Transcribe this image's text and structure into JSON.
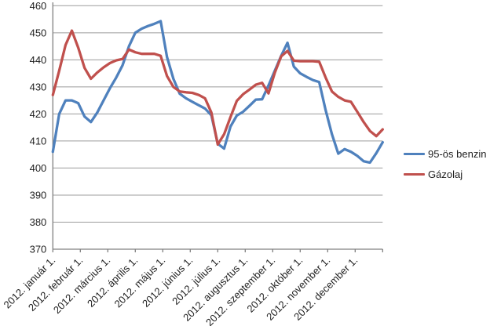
{
  "chart_data": {
    "type": "line",
    "title": "",
    "xlabel": "",
    "ylabel": "",
    "grid": true,
    "legend_position": "right",
    "x_unit": "weekly points, 2012. január 1. – 2012. december 30.",
    "y_axis": {
      "min": 370,
      "max": 460,
      "step": 10,
      "tick_labels": [
        "370",
        "380",
        "390",
        "400",
        "410",
        "420",
        "430",
        "440",
        "450",
        "460"
      ]
    },
    "x_axis": {
      "tick_labels": [
        "2012. január 1.",
        "2012. február 1.",
        "2012. március 1.",
        "2012. április 1.",
        "2012. május 1.",
        "2012. június 1.",
        "2012. július 1.",
        "2012. augusztus 1.",
        "2012. szeptember 1.",
        "2012. október 1.",
        "2012. november 1.",
        "2012. december 1."
      ]
    },
    "series": [
      {
        "name": "95-ös benzin",
        "color": "#4F81BD",
        "values": [
          406,
          420,
          425,
          425,
          424,
          419,
          417,
          420.5,
          425,
          429.5,
          433.5,
          438,
          445,
          450,
          451.5,
          452.5,
          453.3,
          454.3,
          441,
          433,
          427.5,
          425.8,
          424.5,
          423.2,
          422,
          419.5,
          409,
          407.2,
          415.3,
          419.4,
          420.8,
          423,
          425.3,
          425.4,
          430.5,
          436,
          441.5,
          446.3,
          437.5,
          435,
          433.7,
          432.5,
          431.8,
          421.5,
          412.5,
          405.3,
          407,
          406,
          404.5,
          402.5,
          402,
          405.5,
          409.5
        ]
      },
      {
        "name": "Gázolaj",
        "color": "#C0504D",
        "values": [
          427,
          436,
          445.5,
          450.8,
          444.5,
          437,
          433,
          435.3,
          437.2,
          438.8,
          439.8,
          440.3,
          443.8,
          442.8,
          442.2,
          442.2,
          442.2,
          441.5,
          434,
          430,
          428.3,
          428,
          427.8,
          427,
          425.8,
          420.5,
          408.7,
          412.5,
          418.8,
          424.8,
          427.3,
          429,
          430.8,
          431.5,
          427.6,
          435.3,
          441.3,
          443.3,
          439.7,
          439.5,
          439.5,
          439.5,
          439.3,
          433.5,
          428.3,
          426.3,
          425,
          424.5,
          420.8,
          417,
          413.7,
          411.8,
          414.3
        ]
      }
    ]
  },
  "colors": {
    "background": "#FFFFFF",
    "gridline": "#9C9C9C",
    "axis": "#808080",
    "text": "#1F1F1F",
    "series_blue": "#4F81BD",
    "series_red": "#C0504D"
  }
}
